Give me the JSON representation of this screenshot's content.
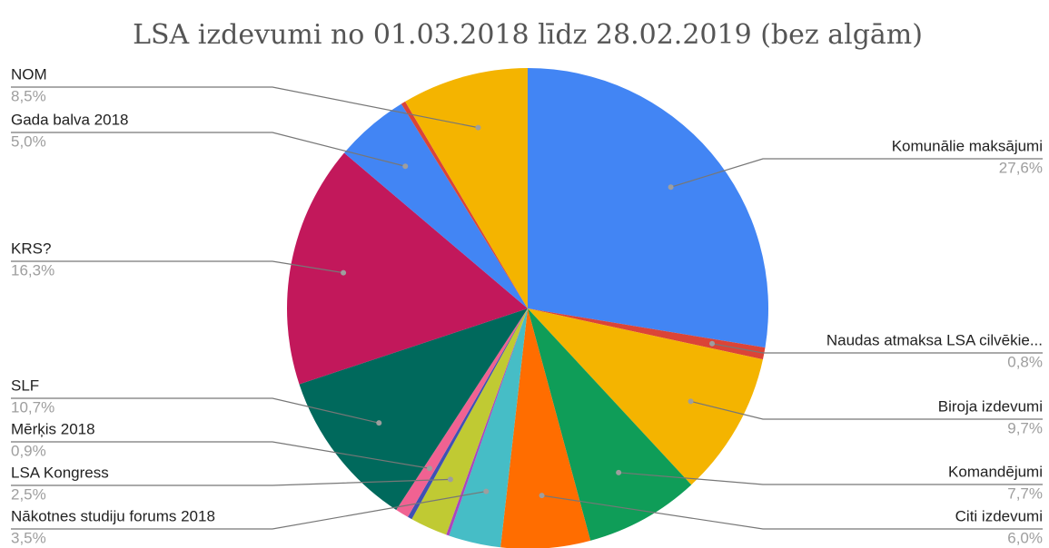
{
  "chart_data": {
    "type": "pie",
    "title": "LSA izdevumi no 01.03.2018 līdz 28.02.2019 (bez algām)",
    "categories": [
      "Komunālie maksājumi",
      "Naudas atmaksa LSA cilvēkie...",
      "Biroja izdevumi",
      "Komandējumi",
      "Citi izdevumi",
      "Nākotnes studiju forums 2018",
      null,
      "LSA Kongress",
      null,
      "Mērķis 2018",
      "SLF",
      "KRS?",
      "Gada balva 2018",
      null,
      "NOM"
    ],
    "values": [
      27.6,
      0.8,
      9.7,
      7.7,
      6.0,
      3.5,
      0.2,
      2.5,
      0.3,
      0.9,
      10.7,
      16.3,
      5.0,
      0.3,
      8.5
    ],
    "value_labels": [
      "27,6%",
      "0,8%",
      "9,7%",
      "7,7%",
      "6,0%",
      "3,5%",
      null,
      "2,5%",
      null,
      "0,9%",
      "10,7%",
      "16,3%",
      "5,0%",
      null,
      "8,5%"
    ],
    "colors": [
      "#4285f4",
      "#db4437",
      "#f4b400",
      "#0f9d58",
      "#ff6d00",
      "#46bdc6",
      "#ab47bc",
      "#c0ca33",
      "#3f51b5",
      "#f06292",
      "#00695c",
      "#c2185b",
      "#4285f4",
      "#db4437",
      "#f4b400"
    ]
  }
}
